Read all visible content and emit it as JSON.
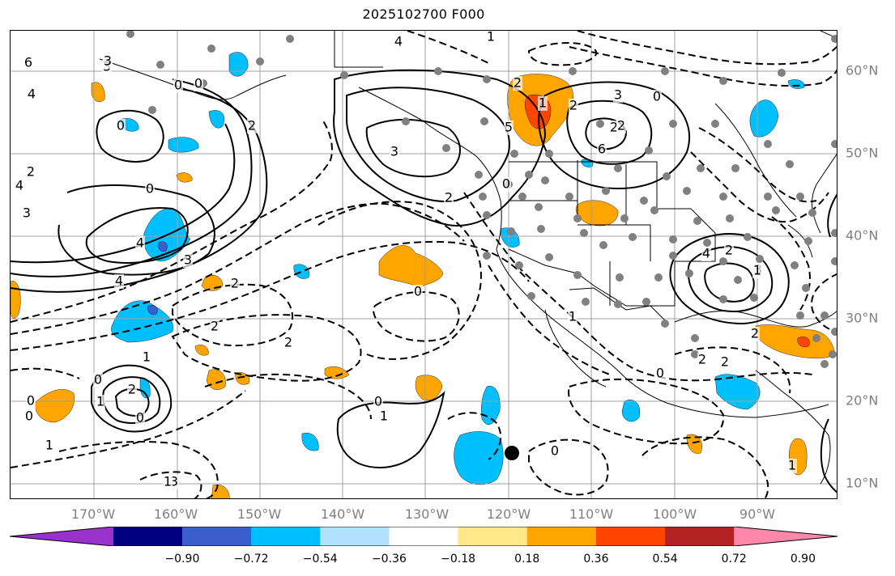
{
  "title": "2025102700 F000",
  "lon_labels": [
    "170°W",
    "160°W",
    "150°W",
    "140°W",
    "130°W",
    "120°W",
    "110°W",
    "100°W",
    "90°W"
  ],
  "lat_labels": [
    "60°N",
    "50°N",
    "40°N",
    "30°N",
    "20°N",
    "10°N"
  ],
  "colorbar": {
    "ticks": [
      "−0.90",
      "−0.72",
      "−0.54",
      "−0.36",
      "−0.18",
      "0.18",
      "0.36",
      "0.54",
      "0.72",
      "0.90"
    ],
    "colors": [
      "#9932cc",
      "#000080",
      "#3a5fcd",
      "#00bfff",
      "#b0e2ff",
      "#ffffff",
      "#ffe78a",
      "#ffa500",
      "#ff4500",
      "#b22222",
      "#ff88aa"
    ]
  },
  "contour_labels": [
    "6",
    "4",
    "3",
    "0",
    "2",
    "3",
    "4",
    "0",
    "2",
    "1",
    "3",
    "2",
    "0",
    "2",
    "4",
    "3",
    "4",
    "3",
    "0",
    "2",
    "1",
    "5",
    "2",
    "6",
    "4",
    "3",
    "2",
    "0",
    "2",
    "4",
    "3",
    "2",
    "0",
    "1",
    "1",
    "2",
    "0",
    "2",
    "1",
    "0",
    "0",
    "1",
    "0",
    "0",
    "1",
    "2",
    "0",
    "1",
    "2",
    "3",
    "0",
    "1",
    "0",
    "2",
    "1",
    "2"
  ],
  "station_marker": "current-location"
}
